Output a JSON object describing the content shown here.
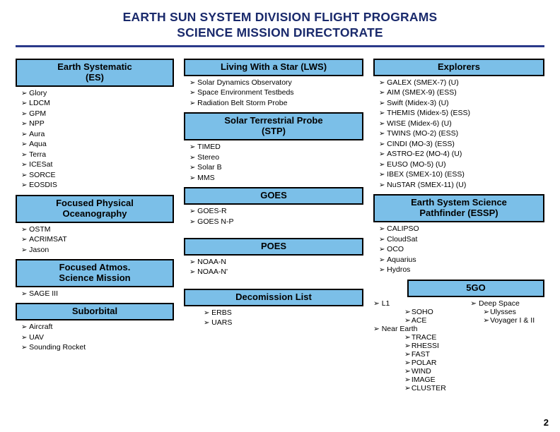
{
  "title_line1": "EARTH SUN SYSTEM DIVISION FLIGHT PROGRAMS",
  "title_line2": "SCIENCE MISSION DIRECTORATE",
  "page_number": "2",
  "colors": {
    "title": "#1a2a6c",
    "rule": "#2a3a8a",
    "box_bg": "#7BBFE8",
    "box_border": "#000000",
    "background": "#ffffff"
  },
  "col1": {
    "es": {
      "label_line1": "Earth Systematic",
      "label_line2": "(ES)",
      "items": [
        "Glory",
        "LDCM",
        "GPM",
        "NPP",
        "Aura",
        "Aqua",
        "Terra",
        "ICESat",
        "SORCE",
        "EOSDIS"
      ]
    },
    "fpo": {
      "label_line1": "Focused Physical",
      "label_line2": "Oceanography",
      "items": [
        "OSTM",
        "ACRIMSAT",
        "Jason"
      ]
    },
    "fasm": {
      "label_line1": "Focused Atmos.",
      "label_line2": "Science Mission",
      "items": [
        "SAGE III"
      ]
    },
    "suborbital": {
      "label": "Suborbital",
      "items": [
        "Aircraft",
        "UAV",
        "Sounding Rocket"
      ]
    }
  },
  "col2": {
    "lws": {
      "label": "Living With a Star (LWS)",
      "items": [
        "Solar Dynamics Observatory",
        "Space Environment Testbeds",
        "Radiation Belt Storm Probe"
      ]
    },
    "stp": {
      "label_line1": "Solar Terrestrial Probe",
      "label_line2": "(STP)",
      "items": [
        "TIMED",
        "Stereo",
        "Solar B",
        "MMS"
      ]
    },
    "goes": {
      "label": "GOES",
      "items": [
        "GOES-R",
        "GOES N-P"
      ]
    },
    "poes": {
      "label": "POES",
      "items": [
        "NOAA-N",
        "NOAA-N'"
      ]
    },
    "decom": {
      "label": "Decomission List",
      "items": [
        "ERBS",
        "UARS"
      ]
    }
  },
  "col3": {
    "explorers": {
      "label": "Explorers",
      "items": [
        "GALEX (SMEX-7)  (U)",
        "AIM (SMEX-9)  (ESS)",
        "Swift (Midex-3)  (U)",
        "THEMIS (Midex-5)  (ESS)",
        "WISE (Midex-6) (U)",
        "TWINS (MO-2)  (ESS)",
        "CINDI (MO-3)  (ESS)",
        "ASTRO-E2 (MO-4)  (U)",
        "EUSO (MO-5)  (U)",
        "IBEX (SMEX-10) (ESS)",
        "NuSTAR (SMEX-11) (U)"
      ]
    },
    "essp": {
      "label_line1": "Earth System Science",
      "label_line2": "Pathfinder (ESSP)",
      "items": [
        "CALIPSO",
        "CloudSat",
        "OCO",
        "Aquarius",
        "Hydros"
      ]
    },
    "fivego": {
      "label": "5GO",
      "left_head": "L1",
      "left_items": [
        "SOHO",
        "ACE"
      ],
      "left_head2": "Near Earth",
      "left_items2": [
        "TRACE",
        "RHESSI",
        "FAST",
        "POLAR",
        "WIND",
        "IMAGE",
        "CLUSTER"
      ],
      "right_head": "Deep Space",
      "right_items": [
        "Ulysses",
        "Voyager I & II"
      ]
    }
  }
}
